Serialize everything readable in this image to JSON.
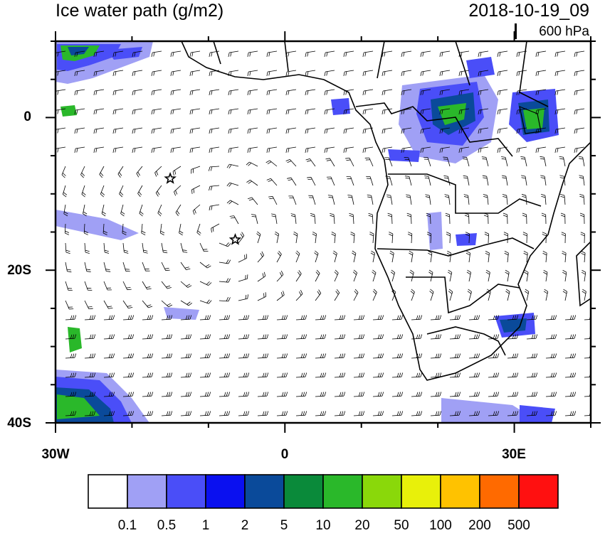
{
  "header": {
    "title": "Ice water path (g/m2)",
    "datetime": "2018-10-19_09",
    "level": "600 hPa"
  },
  "axes": {
    "lat_labels": [
      "0",
      "20S",
      "40S"
    ],
    "lon_labels": [
      "30W",
      "0",
      "30E"
    ],
    "lat_values": [
      0,
      -20,
      -40
    ],
    "lon_values": [
      -30,
      0,
      30
    ],
    "lat_range": [
      -40,
      10
    ],
    "lon_range": [
      -30,
      40
    ]
  },
  "colorbar": {
    "labels": [
      "0.1",
      "0.5",
      "1",
      "2",
      "5",
      "10",
      "20",
      "50",
      "100",
      "200",
      "500"
    ],
    "colors": [
      "#ffffff",
      "#a0a0f5",
      "#4a4ef8",
      "#0a10f0",
      "#0a4a9a",
      "#0a8a3a",
      "#2ab82a",
      "#8ad80a",
      "#e8f00a",
      "#ffc200",
      "#ff6a00",
      "#ff1010"
    ]
  },
  "markers": [
    {
      "name": "star",
      "lon": -15,
      "lat": -8
    },
    {
      "name": "star",
      "lon": -6.5,
      "lat": -16
    }
  ]
}
